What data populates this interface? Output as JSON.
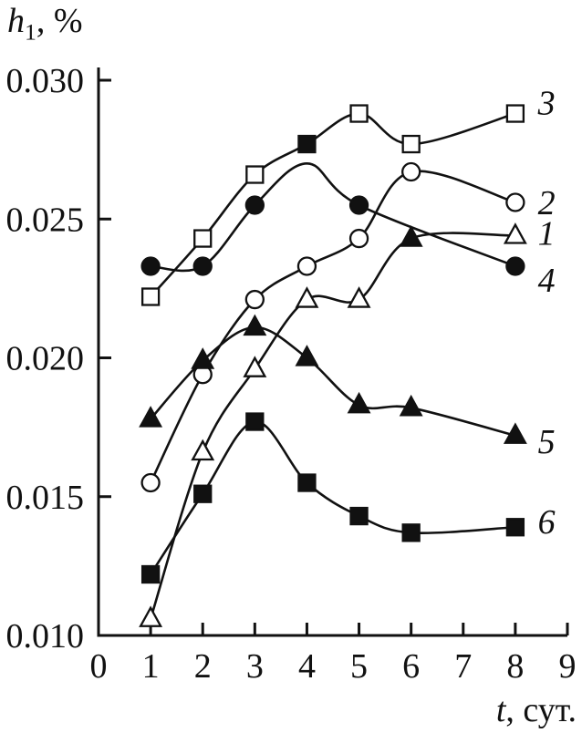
{
  "figure": {
    "ylabel": {
      "var": "h",
      "sub": "1",
      "rest": ", %"
    },
    "xlabel": {
      "var": "t",
      "rest": ", сут."
    }
  },
  "chart_data": {
    "type": "line",
    "title": "",
    "xlabel": "t, сут.",
    "ylabel": "h1, %",
    "xlim": [
      0,
      9
    ],
    "ylim": [
      0.01,
      0.03
    ],
    "x_ticks": [
      0,
      1,
      2,
      3,
      4,
      5,
      6,
      7,
      8,
      9
    ],
    "x_tick_labels": [
      "0",
      "1",
      "2",
      "3",
      "4",
      "5",
      "6",
      "7",
      "8",
      "9"
    ],
    "y_ticks": [
      0.01,
      0.015,
      0.02,
      0.025,
      0.03
    ],
    "y_tick_labels": [
      "0.010",
      "0.015",
      "0.020",
      "0.025",
      "0.030"
    ],
    "grid": false,
    "legend": "curve-end numeric labels",
    "ink_color": "#111111",
    "series": [
      {
        "name": "3",
        "marker": "square-open",
        "label": {
          "x": 8.6,
          "y": 0.0292
        },
        "points": [
          {
            "x": 1,
            "y": 0.0222
          },
          {
            "x": 2,
            "y": 0.0243
          },
          {
            "x": 3,
            "y": 0.0266
          },
          {
            "x": 4,
            "y": 0.0277,
            "marker": "square-filled"
          },
          {
            "x": 5,
            "y": 0.0288
          },
          {
            "x": 6,
            "y": 0.0277
          },
          {
            "x": 8,
            "y": 0.0288
          }
        ]
      },
      {
        "name": "4",
        "marker": "circle-filled",
        "label": {
          "x": 8.6,
          "y": 0.0228
        },
        "points": [
          {
            "x": 1,
            "y": 0.0233
          },
          {
            "x": 2,
            "y": 0.0233
          },
          {
            "x": 3,
            "y": 0.0255
          },
          {
            "x": 4,
            "y": 0.027,
            "marker": "none"
          },
          {
            "x": 5,
            "y": 0.0255
          },
          {
            "x": 8,
            "y": 0.0233
          }
        ]
      },
      {
        "name": "2",
        "marker": "circle-open",
        "label": {
          "x": 8.6,
          "y": 0.0256
        },
        "points": [
          {
            "x": 1,
            "y": 0.0155
          },
          {
            "x": 2,
            "y": 0.0194
          },
          {
            "x": 3,
            "y": 0.0221
          },
          {
            "x": 4,
            "y": 0.0233
          },
          {
            "x": 5,
            "y": 0.0243
          },
          {
            "x": 6,
            "y": 0.0267
          },
          {
            "x": 8,
            "y": 0.0256
          }
        ]
      },
      {
        "name": "1",
        "marker": "triangle-open",
        "label": {
          "x": 8.6,
          "y": 0.0245
        },
        "points": [
          {
            "x": 1,
            "y": 0.0106
          },
          {
            "x": 2,
            "y": 0.0166
          },
          {
            "x": 3,
            "y": 0.0196
          },
          {
            "x": 4,
            "y": 0.0221
          },
          {
            "x": 5,
            "y": 0.0221
          },
          {
            "x": 6,
            "y": 0.0243,
            "marker": "triangle-filled"
          },
          {
            "x": 8,
            "y": 0.0244
          }
        ]
      },
      {
        "name": "5",
        "marker": "triangle-filled",
        "label": {
          "x": 8.6,
          "y": 0.017
        },
        "points": [
          {
            "x": 1,
            "y": 0.0178
          },
          {
            "x": 2,
            "y": 0.0199
          },
          {
            "x": 3,
            "y": 0.0211
          },
          {
            "x": 4,
            "y": 0.02
          },
          {
            "x": 5,
            "y": 0.0183
          },
          {
            "x": 6,
            "y": 0.0182
          },
          {
            "x": 8,
            "y": 0.0172
          }
        ]
      },
      {
        "name": "6",
        "marker": "square-filled",
        "label": {
          "x": 8.6,
          "y": 0.0141
        },
        "points": [
          {
            "x": 1,
            "y": 0.0122
          },
          {
            "x": 2,
            "y": 0.0151
          },
          {
            "x": 3,
            "y": 0.0177
          },
          {
            "x": 4,
            "y": 0.0155
          },
          {
            "x": 5,
            "y": 0.0143
          },
          {
            "x": 6,
            "y": 0.0137
          },
          {
            "x": 8,
            "y": 0.0139
          }
        ]
      }
    ]
  }
}
